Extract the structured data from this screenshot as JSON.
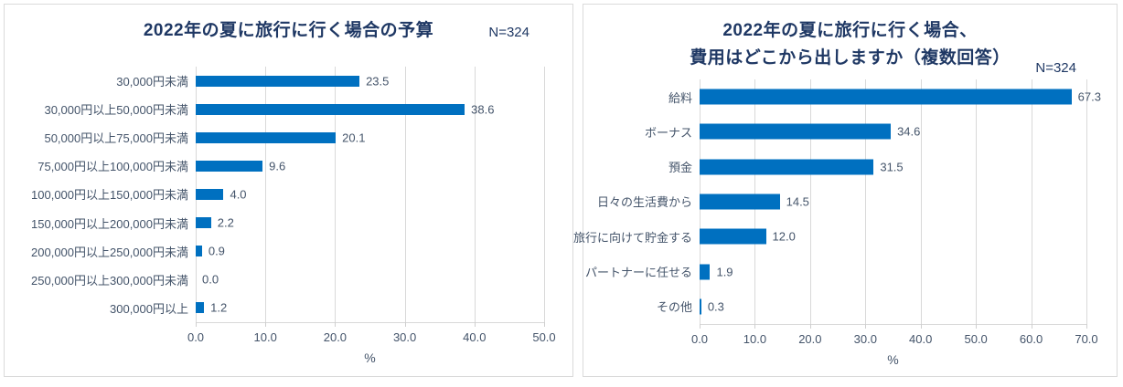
{
  "colors": {
    "bar": "#0070C0",
    "title_text": "#1F3864",
    "label_text": "#44546A",
    "gridline": "#D9D9D9",
    "panel_border": "#DADADA",
    "background": "#FFFFFF"
  },
  "chart_data": [
    {
      "type": "bar",
      "orientation": "horizontal",
      "title": "2022年の夏に旅行に行く場合の予算",
      "title_lines": [
        "2022年の夏に旅行に行く場合の予算"
      ],
      "n_label": "N=324",
      "categories": [
        "30,000円未満",
        "30,000円以上50,000円未満",
        "50,000円以上75,000円未満",
        "75,000円以上100,000円未満",
        "100,000円以上150,000円未満",
        "150,000円以上200,000円未満",
        "200,000円以上250,000円未満",
        "250,000円以上300,000円未満",
        "300,000円以上"
      ],
      "values": [
        23.5,
        38.6,
        20.1,
        9.6,
        4.0,
        2.2,
        0.9,
        0.0,
        1.2
      ],
      "value_labels": [
        "23.5",
        "38.6",
        "20.1",
        "9.6",
        "4.0",
        "2.2",
        "0.9",
        "0.0",
        "1.2"
      ],
      "xlabel": "%",
      "xlim": [
        0,
        50
      ],
      "xticks": [
        "0.0",
        "10.0",
        "20.0",
        "30.0",
        "40.0",
        "50.0"
      ],
      "grid": true,
      "legend": "none",
      "bar_color": "#0070C0"
    },
    {
      "type": "bar",
      "orientation": "horizontal",
      "title": "2022年の夏に旅行に行く場合、費用はどこから出しますか（複数回答）",
      "title_lines": [
        "2022年の夏に旅行に行く場合、",
        "費用はどこから出しますか（複数回答）"
      ],
      "n_label": "N=324",
      "categories": [
        "給料",
        "ボーナス",
        "預金",
        "日々の生活費から",
        "旅行に向けて貯金する",
        "パートナーに任せる",
        "その他"
      ],
      "values": [
        67.3,
        34.6,
        31.5,
        14.5,
        12.0,
        1.9,
        0.3
      ],
      "value_labels": [
        "67.3",
        "34.6",
        "31.5",
        "14.5",
        "12.0",
        "1.9",
        "0.3"
      ],
      "xlabel": "%",
      "xlim": [
        0,
        70
      ],
      "xticks": [
        "0.0",
        "10.0",
        "20.0",
        "30.0",
        "40.0",
        "50.0",
        "60.0",
        "70.0"
      ],
      "grid": true,
      "legend": "none",
      "bar_color": "#0070C0"
    }
  ]
}
